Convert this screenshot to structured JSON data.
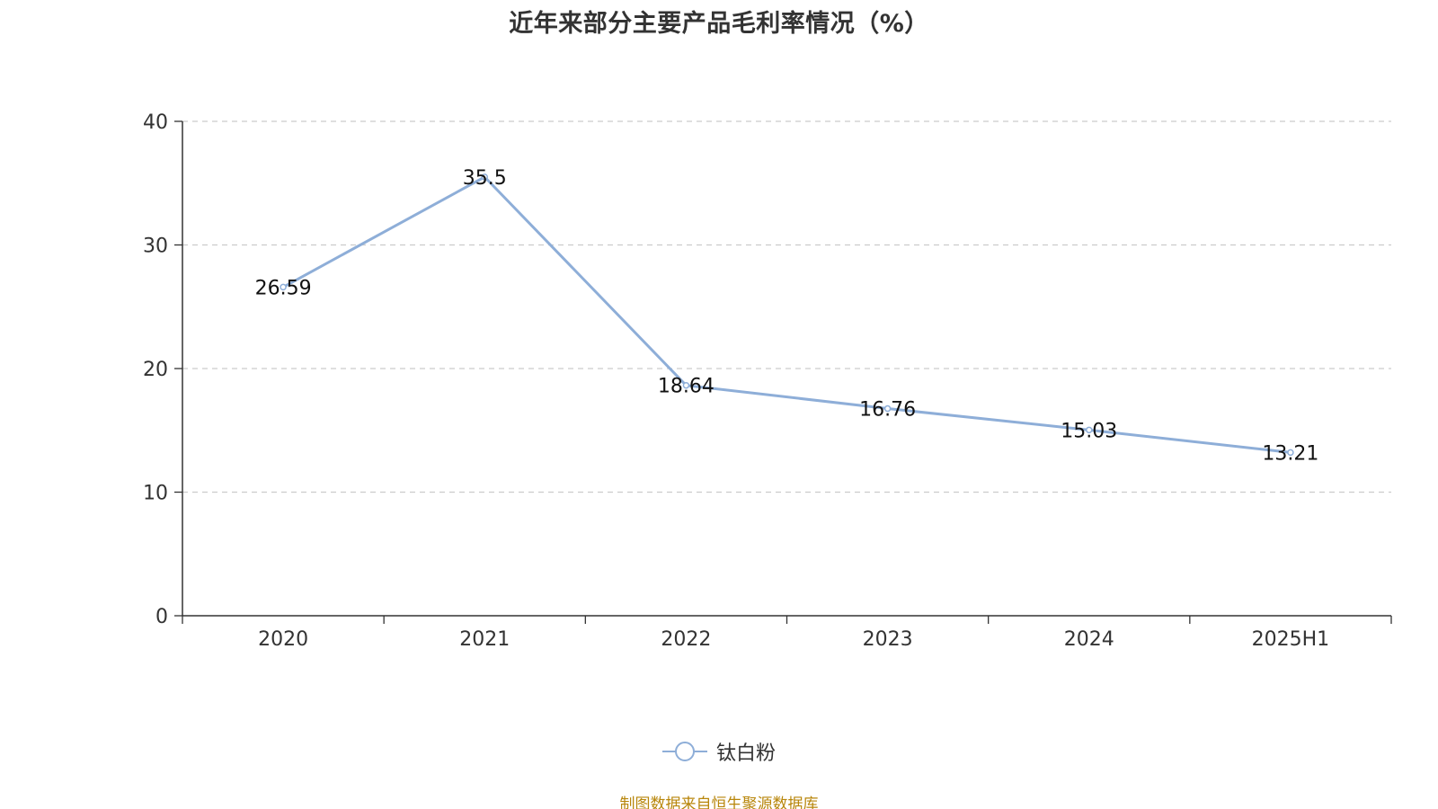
{
  "chart_data": {
    "type": "line",
    "title": "近年来部分主要产品毛利率情况（%）",
    "categories": [
      "2020",
      "2021",
      "2022",
      "2023",
      "2024",
      "2025H1"
    ],
    "series": [
      {
        "name": "钛白粉",
        "values": [
          26.59,
          35.5,
          18.64,
          16.76,
          15.03,
          13.21
        ],
        "data_labels": [
          "26.59",
          "35.5",
          "18.64",
          "16.76",
          "15.03",
          "13.21"
        ],
        "color": "#8eaed8"
      }
    ],
    "ylim": [
      0,
      40
    ],
    "yticks": [
      "0",
      "10",
      "20",
      "30",
      "40"
    ],
    "grid": true,
    "legend_position": "bottom-center"
  },
  "source_note": "制图数据来自恒生聚源数据库",
  "colors": {
    "axis": "#333333",
    "grid": "#cccccc",
    "text": "#333333",
    "source": "#b8860b"
  }
}
